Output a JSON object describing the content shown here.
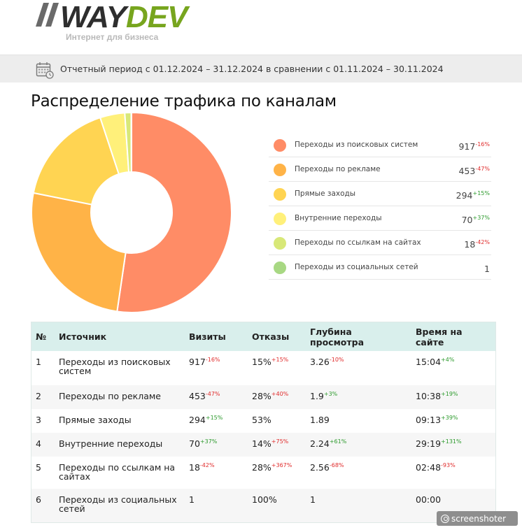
{
  "logo": {
    "brand_part1": "WAY",
    "brand_part2": "DEV",
    "tagline": "Интернет для бизнеса"
  },
  "period": {
    "icon": "calendar-icon",
    "text": "Отчетный период с 01.12.2024 – 31.12.2024 в сравнении с 01.11.2024 – 30.11.2024"
  },
  "title": "Распределение трафика по каналам",
  "legend": [
    {
      "label": "Переходы из поисковых систем",
      "value": "917",
      "change": "-16%",
      "trend": "neg",
      "color": "#ff8c66"
    },
    {
      "label": "Переходы по рекламе",
      "value": "453",
      "change": "-47%",
      "trend": "neg",
      "color": "#ffb347"
    },
    {
      "label": "Прямые заходы",
      "value": "294",
      "change": "+15%",
      "trend": "pos",
      "color": "#ffd452"
    },
    {
      "label": "Внутренние переходы",
      "value": "70",
      "change": "+37%",
      "trend": "pos",
      "color": "#fff07a"
    },
    {
      "label": "Переходы по ссылкам на сайтах",
      "value": "18",
      "change": "-42%",
      "trend": "neg",
      "color": "#d8e878"
    },
    {
      "label": "Переходы из социальных сетей",
      "value": "1",
      "change": "",
      "trend": "",
      "color": "#a8d883"
    }
  ],
  "table": {
    "headers": [
      "№",
      "Источник",
      "Визиты",
      "Отказы",
      "Глубина просмотра",
      "Время на сайте"
    ],
    "rows": [
      {
        "n": "1",
        "source": "Переходы из поисковых систем",
        "visits": "917",
        "visits_ch": "-16%",
        "visits_tr": "neg",
        "bounce": "15%",
        "bounce_ch": "+15%",
        "bounce_tr": "neg",
        "depth": "3.26",
        "depth_ch": "-10%",
        "depth_tr": "neg",
        "time": "15:04",
        "time_ch": "+4%",
        "time_tr": "pos"
      },
      {
        "n": "2",
        "source": "Переходы по рекламе",
        "visits": "453",
        "visits_ch": "-47%",
        "visits_tr": "neg",
        "bounce": "28%",
        "bounce_ch": "+40%",
        "bounce_tr": "neg",
        "depth": "1.9",
        "depth_ch": "+3%",
        "depth_tr": "pos",
        "time": "10:38",
        "time_ch": "+19%",
        "time_tr": "pos"
      },
      {
        "n": "3",
        "source": "Прямые заходы",
        "visits": "294",
        "visits_ch": "+15%",
        "visits_tr": "pos",
        "bounce": "53%",
        "bounce_ch": "",
        "bounce_tr": "",
        "depth": "1.89",
        "depth_ch": "",
        "depth_tr": "",
        "time": "09:13",
        "time_ch": "+39%",
        "time_tr": "pos"
      },
      {
        "n": "4",
        "source": "Внутренние переходы",
        "visits": "70",
        "visits_ch": "+37%",
        "visits_tr": "pos",
        "bounce": "14%",
        "bounce_ch": "+75%",
        "bounce_tr": "neg",
        "depth": "2.24",
        "depth_ch": "+61%",
        "depth_tr": "pos",
        "time": "29:19",
        "time_ch": "+131%",
        "time_tr": "pos"
      },
      {
        "n": "5",
        "source": "Переходы по ссылкам на сайтах",
        "visits": "18",
        "visits_ch": "-42%",
        "visits_tr": "neg",
        "bounce": "28%",
        "bounce_ch": "+367%",
        "bounce_tr": "neg",
        "depth": "2.56",
        "depth_ch": "-68%",
        "depth_tr": "neg",
        "time": "02:48",
        "time_ch": "-93%",
        "time_tr": "neg"
      },
      {
        "n": "6",
        "source": "Переходы из социальных сетей",
        "visits": "1",
        "visits_ch": "",
        "visits_tr": "",
        "bounce": "100%",
        "bounce_ch": "",
        "bounce_tr": "",
        "depth": "1",
        "depth_ch": "",
        "depth_tr": "",
        "time": "00:00",
        "time_ch": "",
        "time_tr": ""
      }
    ]
  },
  "chart_data": {
    "type": "pie",
    "donut": true,
    "categories": [
      "Переходы из поисковых систем",
      "Переходы по рекламе",
      "Прямые заходы",
      "Внутренние переходы",
      "Переходы по ссылкам на сайтах",
      "Переходы из социальных сетей"
    ],
    "values": [
      917,
      453,
      294,
      70,
      18,
      1
    ],
    "colors": [
      "#ff8c66",
      "#ffb347",
      "#ffd452",
      "#fff07a",
      "#d8e878",
      "#a8d883"
    ],
    "legend": "right"
  },
  "watermark": "screenshoter"
}
